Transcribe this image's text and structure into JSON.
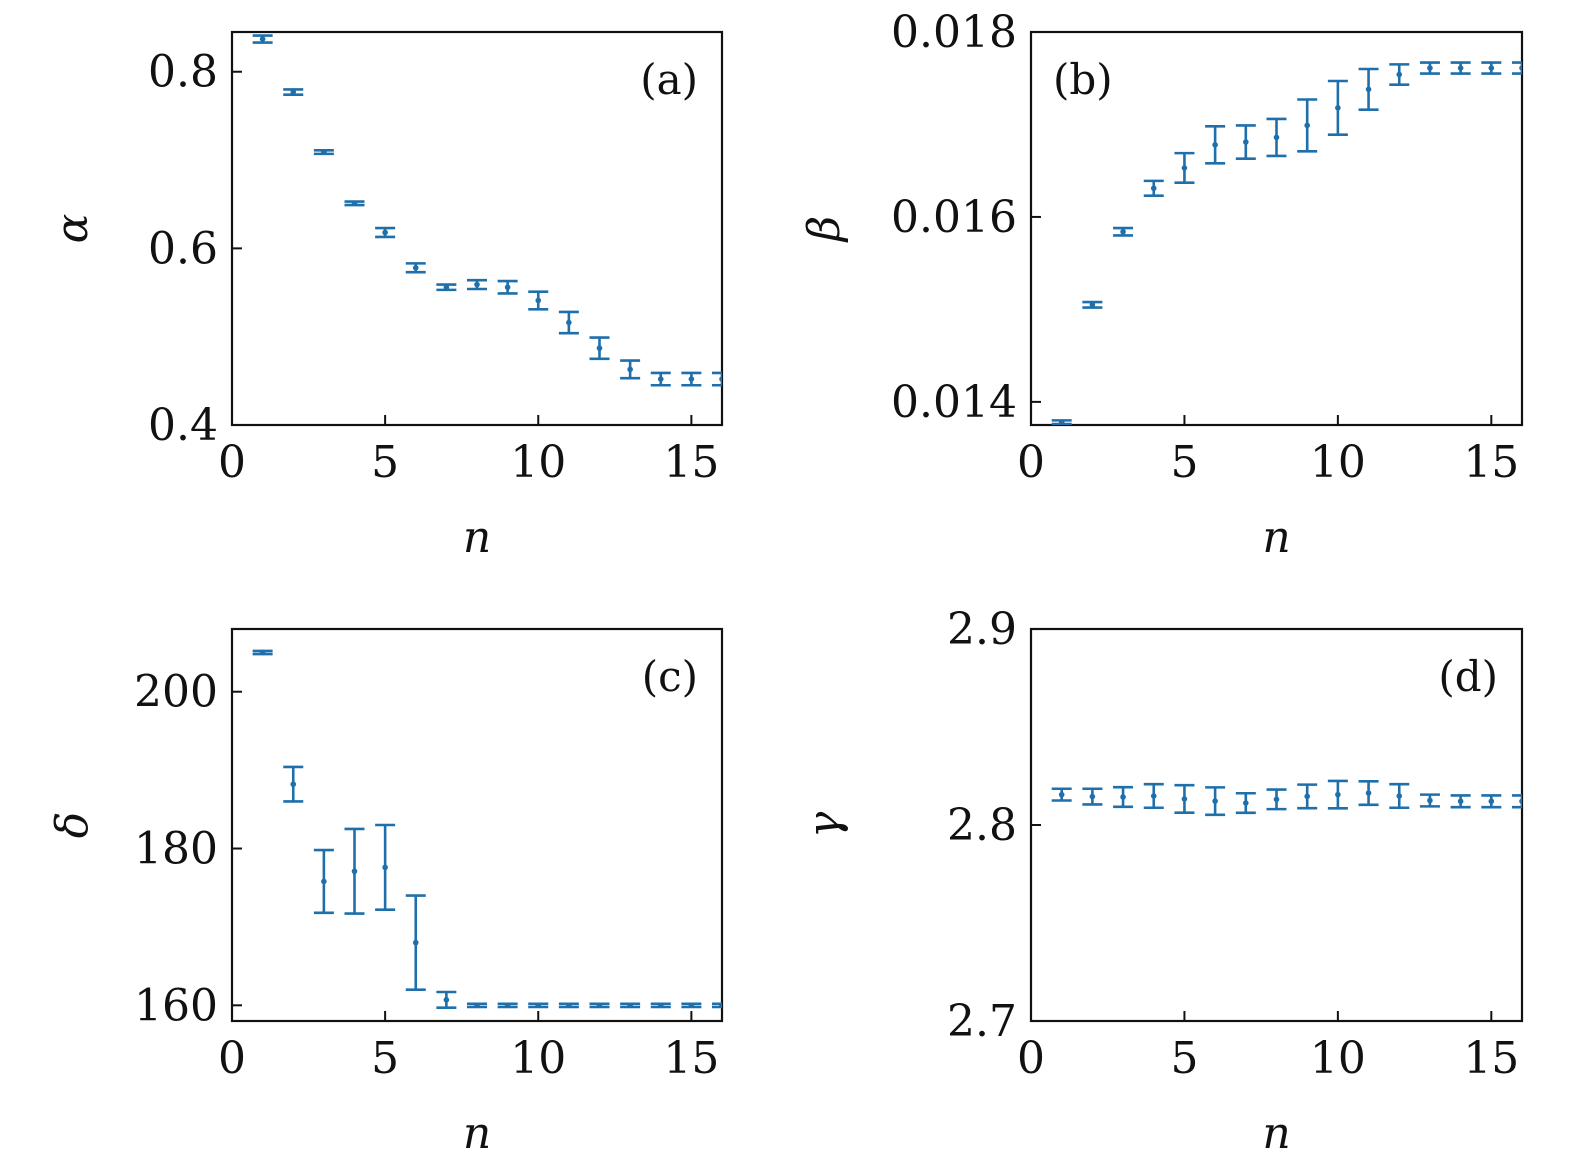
{
  "chart_data": [
    {
      "type": "scatter",
      "panel_label": "(a)",
      "xlabel": "n",
      "ylabel": "α",
      "xlim": [
        0,
        16
      ],
      "ylim": [
        0.4,
        0.845
      ],
      "xticks": [
        0,
        5,
        10,
        15
      ],
      "xtick_labels": [
        "0",
        "5",
        "10",
        "15"
      ],
      "yticks": [
        0.4,
        0.6,
        0.8
      ],
      "ytick_labels": [
        "0.4",
        "0.6",
        "0.8"
      ],
      "error_bars": true,
      "color": "#1f6fab",
      "legend": "none",
      "grid": false,
      "x": [
        1,
        2,
        3,
        4,
        5,
        6,
        7,
        8,
        9,
        10,
        11,
        12,
        13,
        14,
        15,
        16
      ],
      "y": [
        0.837,
        0.777,
        0.709,
        0.651,
        0.618,
        0.578,
        0.556,
        0.559,
        0.556,
        0.541,
        0.516,
        0.487,
        0.463,
        0.452,
        0.452,
        0.452
      ],
      "err": [
        0.004,
        0.003,
        0.002,
        0.002,
        0.005,
        0.005,
        0.003,
        0.005,
        0.007,
        0.01,
        0.012,
        0.012,
        0.01,
        0.007,
        0.007,
        0.007
      ]
    },
    {
      "type": "scatter",
      "panel_label": "(b)",
      "xlabel": "n",
      "ylabel": "β",
      "xlim": [
        0,
        16
      ],
      "ylim": [
        0.01375,
        0.018
      ],
      "xticks": [
        0,
        5,
        10,
        15
      ],
      "xtick_labels": [
        "0",
        "5",
        "10",
        "15"
      ],
      "yticks": [
        0.014,
        0.016,
        0.018
      ],
      "ytick_labels": [
        "0.014",
        "0.016",
        "0.018"
      ],
      "error_bars": true,
      "color": "#1f6fab",
      "legend": "none",
      "grid": false,
      "x": [
        1,
        2,
        3,
        4,
        5,
        6,
        7,
        8,
        9,
        10,
        11,
        12,
        13,
        14,
        15,
        16
      ],
      "y": [
        0.01378,
        0.01505,
        0.01584,
        0.01631,
        0.01653,
        0.01678,
        0.01681,
        0.01686,
        0.01699,
        0.01718,
        0.01738,
        0.01754,
        0.01761,
        0.01761,
        0.01761,
        0.01761
      ],
      "err": [
        2e-05,
        3e-05,
        4e-05,
        8e-05,
        0.00016,
        0.0002,
        0.00018,
        0.0002,
        0.00028,
        0.00029,
        0.00022,
        0.00011,
        6e-05,
        6e-05,
        6e-05,
        6e-05
      ]
    },
    {
      "type": "scatter",
      "panel_label": "(c)",
      "xlabel": "n",
      "ylabel": "δ",
      "xlim": [
        0,
        16
      ],
      "ylim": [
        158,
        208
      ],
      "xticks": [
        0,
        5,
        10,
        15
      ],
      "xtick_labels": [
        "0",
        "5",
        "10",
        "15"
      ],
      "yticks": [
        160,
        180,
        200
      ],
      "ytick_labels": [
        "160",
        "180",
        "200"
      ],
      "error_bars": true,
      "color": "#1f6fab",
      "legend": "none",
      "grid": false,
      "x": [
        1,
        2,
        3,
        4,
        5,
        6,
        7,
        8,
        9,
        10,
        11,
        12,
        13,
        14,
        15,
        16
      ],
      "y": [
        205.0,
        188.2,
        175.8,
        177.1,
        177.6,
        168.0,
        160.7,
        160.0,
        160.0,
        160.0,
        160.0,
        160.0,
        160.0,
        160.0,
        160.0,
        160.0
      ],
      "err": [
        0.2,
        2.2,
        4.0,
        5.4,
        5.4,
        6.0,
        1.0,
        0.2,
        0.2,
        0.2,
        0.2,
        0.2,
        0.2,
        0.2,
        0.2,
        0.2
      ]
    },
    {
      "type": "scatter",
      "panel_label": "(d)",
      "xlabel": "n",
      "ylabel": "γ",
      "xlim": [
        0,
        16
      ],
      "ylim": [
        2.7,
        2.9
      ],
      "xticks": [
        0,
        5,
        10,
        15
      ],
      "xtick_labels": [
        "0",
        "5",
        "10",
        "15"
      ],
      "yticks": [
        2.7,
        2.8,
        2.9
      ],
      "ytick_labels": [
        "2.7",
        "2.8",
        "2.9"
      ],
      "error_bars": true,
      "color": "#1f6fab",
      "legend": "none",
      "grid": false,
      "x": [
        1,
        2,
        3,
        4,
        5,
        6,
        7,
        8,
        9,
        10,
        11,
        12,
        13,
        14,
        15,
        16
      ],
      "y": [
        2.8155,
        2.8145,
        2.8143,
        2.8148,
        2.8133,
        2.8122,
        2.8112,
        2.8131,
        2.8146,
        2.8155,
        2.8163,
        2.8148,
        2.8125,
        2.8121,
        2.8121,
        2.8121
      ],
      "err": [
        0.003,
        0.004,
        0.005,
        0.006,
        0.007,
        0.007,
        0.005,
        0.005,
        0.006,
        0.007,
        0.006,
        0.006,
        0.003,
        0.003,
        0.003,
        0.003
      ]
    }
  ]
}
